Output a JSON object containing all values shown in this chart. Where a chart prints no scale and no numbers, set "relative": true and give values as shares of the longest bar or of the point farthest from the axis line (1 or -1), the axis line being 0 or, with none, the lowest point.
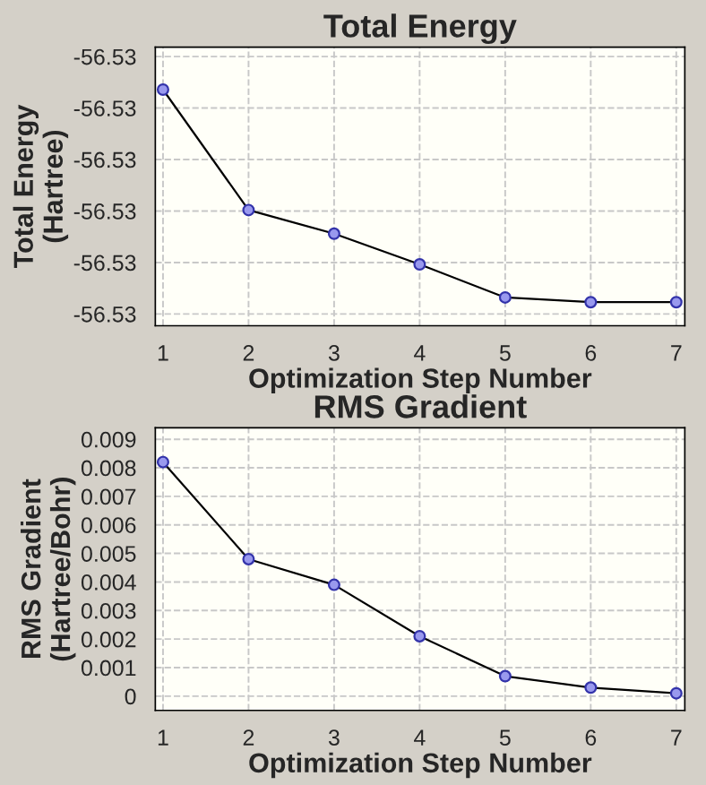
{
  "chart_data": [
    {
      "type": "line",
      "title": "Total Energy",
      "xlabel": "Optimization Step Number",
      "ylabel": "Total Energy\n(Hartree)",
      "relative": true,
      "x": [
        1,
        2,
        3,
        4,
        5,
        6,
        7
      ],
      "xlim": [
        0.91,
        7.1
      ],
      "xticks": [
        1,
        2,
        3,
        4,
        5,
        6,
        7
      ],
      "annotations": [
        "-56.53",
        "-56.53",
        "-56.53",
        "-56.53",
        "-56.53",
        "-56.53"
      ],
      "series": [
        {
          "color": "#000000",
          "values": [
            1,
            0.49,
            0.39,
            0.26,
            0.12,
            0.1,
            0.1
          ]
        }
      ],
      "marker": "circle",
      "line_style": "solid",
      "grid": true,
      "legend": false
    },
    {
      "type": "line",
      "title": "RMS Gradient",
      "xlabel": "Optimization Step Number",
      "ylabel": "RMS Gradient\n(Hartree/Bohr)",
      "x": [
        1,
        2,
        3,
        4,
        5,
        6,
        7
      ],
      "xlim": [
        0.91,
        7.1
      ],
      "xticks": [
        1,
        2,
        3,
        4,
        5,
        6,
        7
      ],
      "ylim": [
        -0.0005,
        0.0094
      ],
      "yticks": [
        0,
        0.001,
        0.002,
        0.003,
        0.004,
        0.005,
        0.006,
        0.007,
        0.008,
        0.009
      ],
      "series": [
        {
          "color": "#000000",
          "values": [
            0.0082,
            0.0048,
            0.0039,
            0.0021,
            0.0007,
            0.0003,
            0.0001
          ]
        }
      ],
      "marker": "circle",
      "line_style": "solid",
      "grid": true,
      "legend": false
    }
  ]
}
